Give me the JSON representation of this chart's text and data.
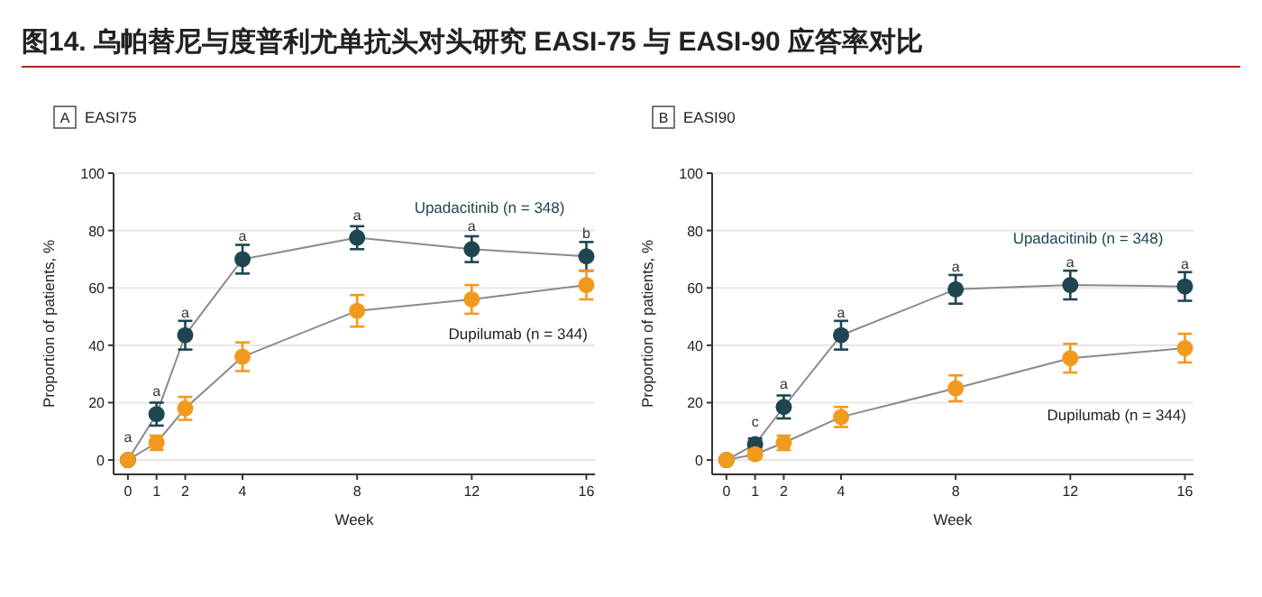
{
  "chart_data": [
    {
      "type": "line",
      "title": "图14. 乌帕替尼与度普利尤单抗头对头研究 EASI-75 与 EASI-90 应答率对比",
      "subtitle": "EASI75",
      "xlabel": "Week",
      "ylabel": "Proportion of patients, %",
      "marker": "circle",
      "grid": "y",
      "x": [
        0,
        1,
        2,
        4,
        8,
        12,
        16
      ],
      "xlim": [
        -0.5,
        16.3
      ],
      "xticks": [
        0,
        1,
        2,
        4,
        8,
        12,
        16
      ],
      "ylim": [
        -5,
        100
      ],
      "yticks": [
        0,
        20,
        40,
        60,
        80,
        100
      ],
      "series": [
        {
          "name": "Upadacitinib (n = 348)",
          "color": "#1f4650",
          "values": [
            0,
            16,
            43.5,
            70,
            77.5,
            73.5,
            71
          ],
          "errors": [
            null,
            4,
            5,
            5,
            4,
            4.5,
            5
          ]
        },
        {
          "name": "Dupilumab (n = 344)",
          "color": "#f29a1e",
          "values": [
            0,
            6,
            18,
            36,
            52,
            56,
            61
          ],
          "errors": [
            null,
            2.5,
            4,
            5,
            5.5,
            5,
            5
          ]
        }
      ],
      "annotations": [
        "A",
        {
          "text": "a",
          "x": 0,
          "y": 0
        },
        {
          "text": "a",
          "x": 1,
          "y": 16
        },
        {
          "text": "a",
          "x": 2,
          "y": 43.5
        },
        {
          "text": "a",
          "x": 4,
          "y": 70
        },
        {
          "text": "a",
          "x": 8,
          "y": 77.5
        },
        {
          "text": "a",
          "x": 12,
          "y": 73.5
        },
        {
          "text": "b",
          "x": 16,
          "y": 71
        }
      ]
    },
    {
      "type": "line",
      "subtitle": "EASI90",
      "xlabel": "Week",
      "ylabel": "Proportion of patients, %",
      "marker": "circle",
      "grid": "y",
      "x": [
        0,
        1,
        2,
        4,
        8,
        12,
        16
      ],
      "xlim": [
        -0.5,
        16.3
      ],
      "xticks": [
        0,
        1,
        2,
        4,
        8,
        12,
        16
      ],
      "ylim": [
        -5,
        100
      ],
      "yticks": [
        0,
        20,
        40,
        60,
        80,
        100
      ],
      "series": [
        {
          "name": "Upadacitinib (n = 348)",
          "color": "#1f4650",
          "values": [
            0,
            5.5,
            18.5,
            43.5,
            59.5,
            61,
            60.5
          ],
          "errors": [
            null,
            2,
            4,
            5,
            5,
            5,
            5
          ]
        },
        {
          "name": "Dupilumab (n = 344)",
          "color": "#f29a1e",
          "values": [
            0,
            2,
            6,
            15,
            25,
            35.5,
            39
          ],
          "errors": [
            null,
            1.5,
            2.5,
            3.5,
            4.5,
            5,
            5
          ]
        }
      ],
      "annotations": [
        "B",
        {
          "text": "c",
          "x": 1,
          "y": 5.5
        },
        {
          "text": "a",
          "x": 2,
          "y": 18.5
        },
        {
          "text": "a",
          "x": 4,
          "y": 43.5
        },
        {
          "text": "a",
          "x": 8,
          "y": 59.5
        },
        {
          "text": "a",
          "x": 12,
          "y": 61
        },
        {
          "text": "a",
          "x": 16,
          "y": 60.5
        }
      ]
    }
  ]
}
